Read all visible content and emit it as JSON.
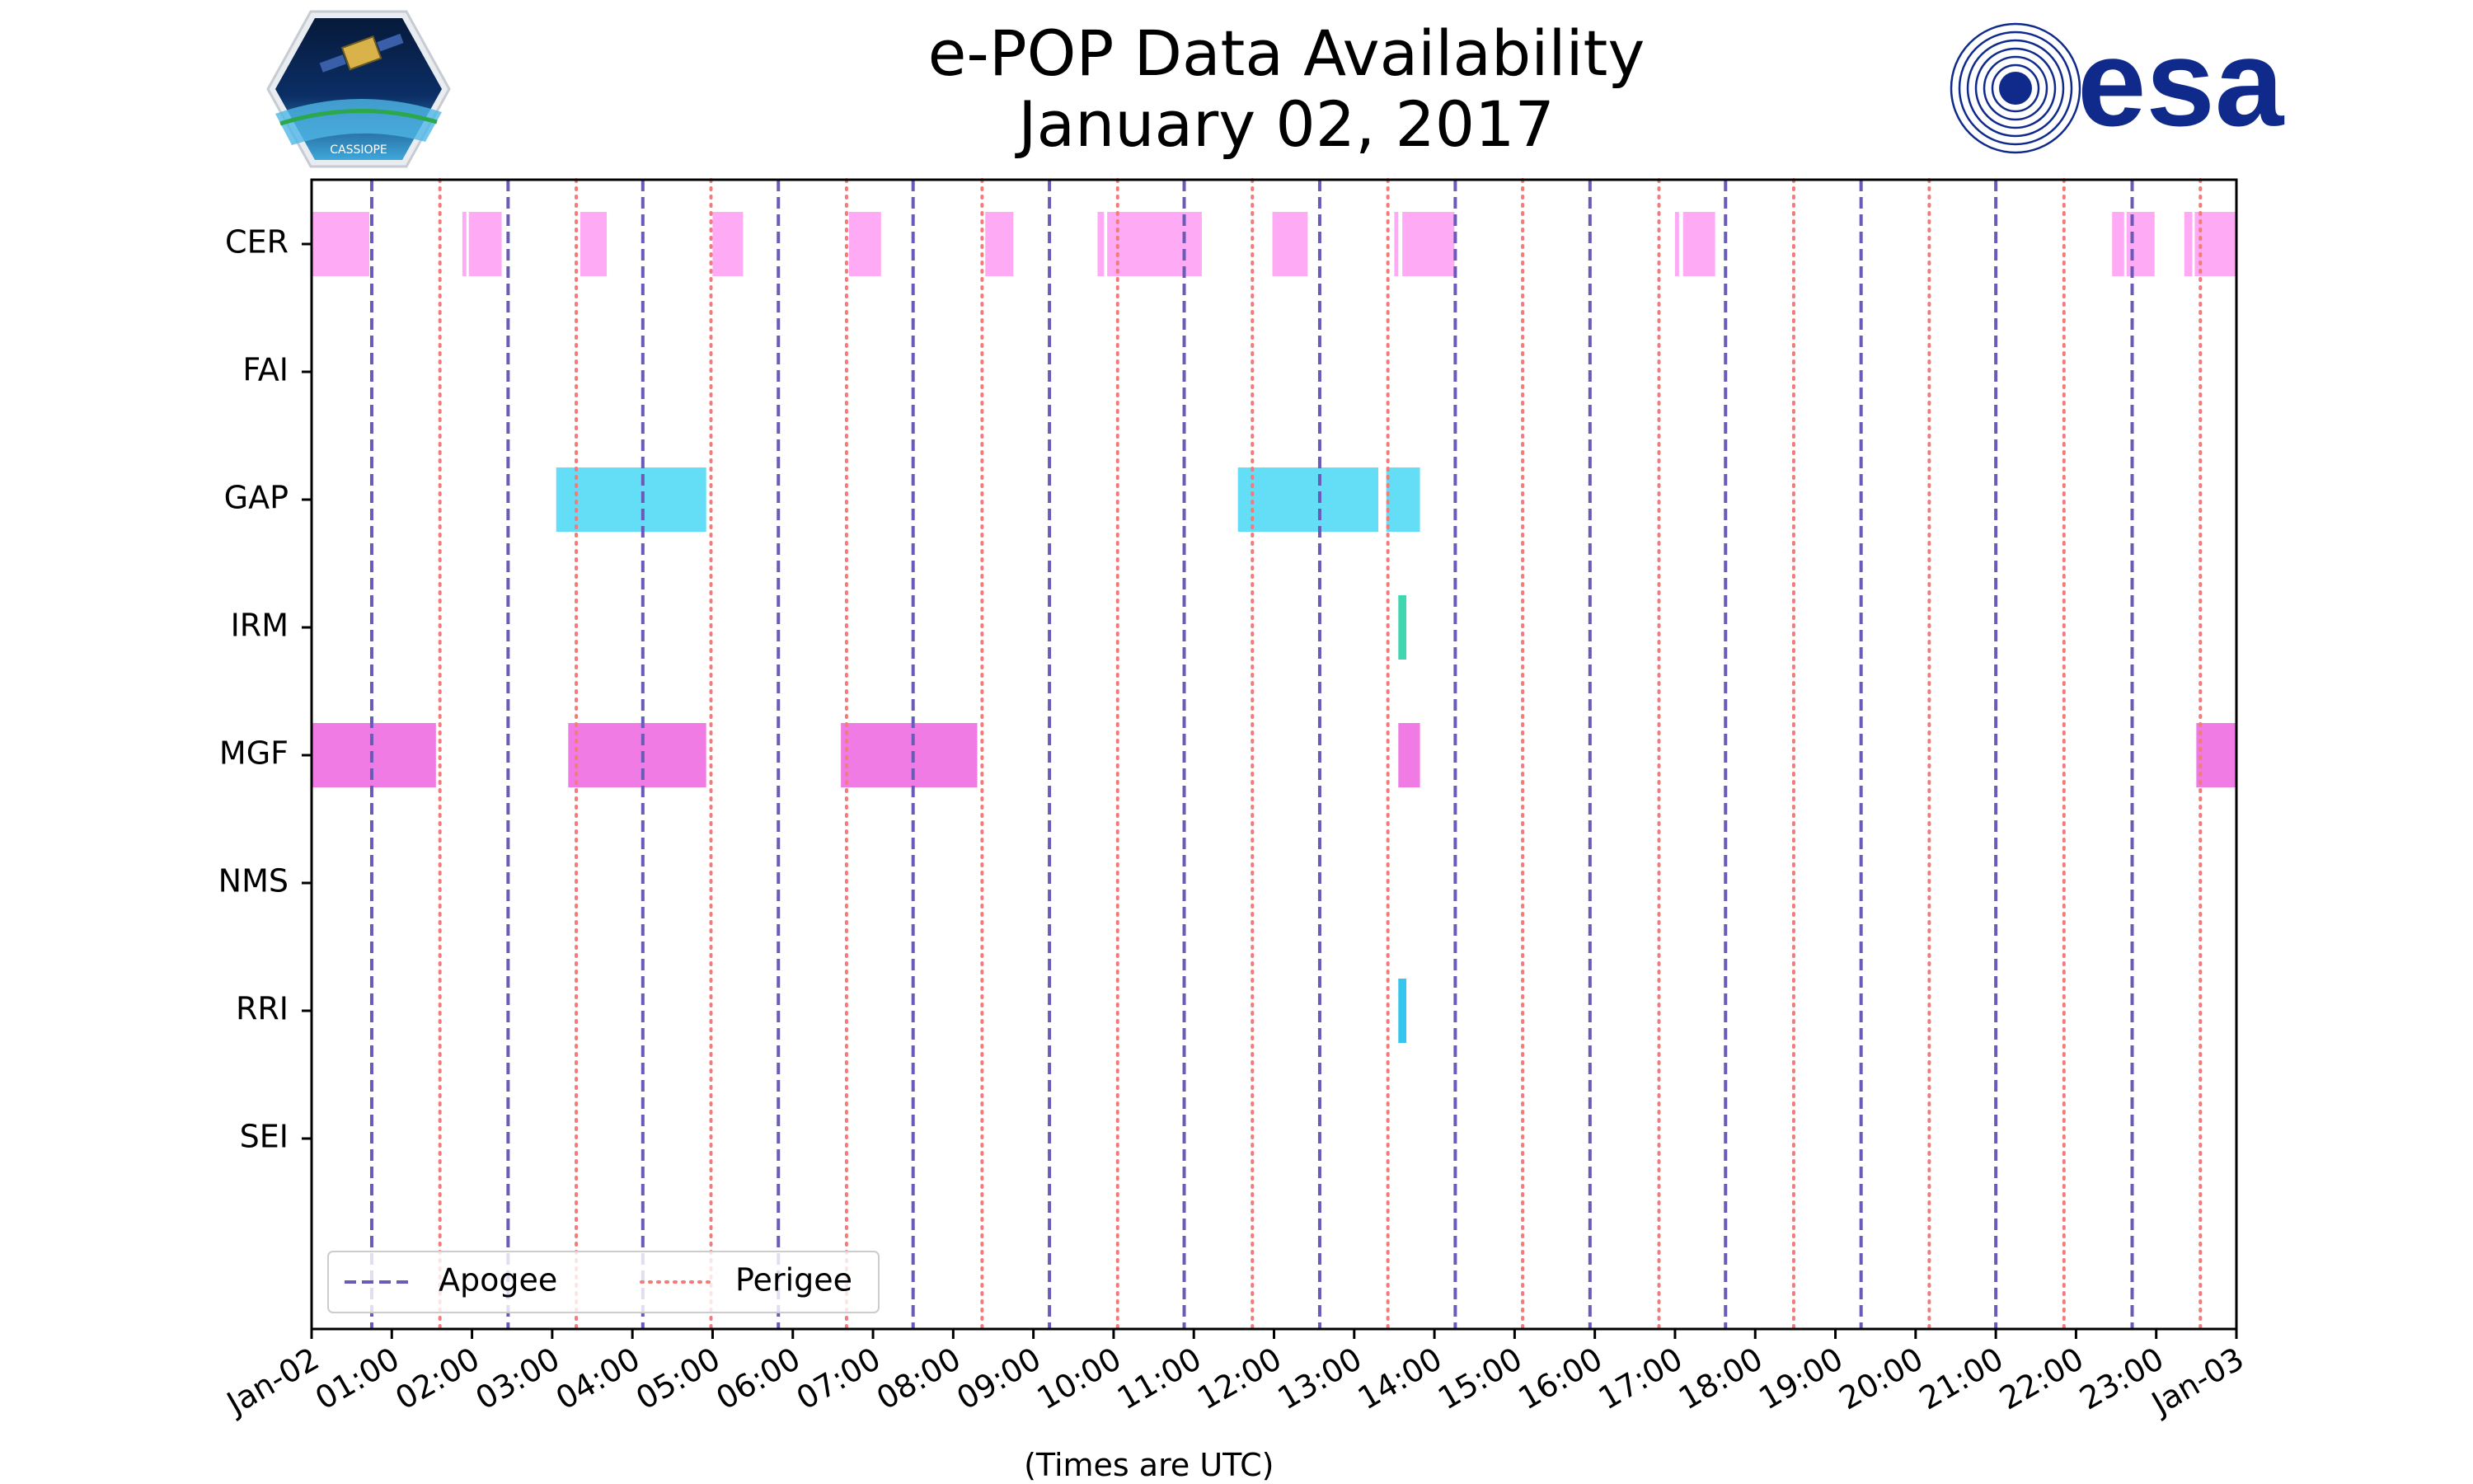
{
  "title": {
    "line1": "e-POP Data Availability",
    "line2": "January 02, 2017"
  },
  "logos": {
    "left": {
      "name": "CASSIOPE mission patch",
      "text": "CASSIOPE"
    },
    "right": {
      "name": "ESA logo",
      "text": "esa",
      "color": "#0f2a8a"
    }
  },
  "chart_data": {
    "type": "timeline",
    "title": "e-POP Data Availability January 02, 2017",
    "xlabel": "(Times are UTC)",
    "ylabel": "",
    "x_unit": "hours UTC",
    "xlim": [
      0,
      24
    ],
    "x_ticks": [
      {
        "value": 0,
        "label": "Jan-02"
      },
      {
        "value": 1,
        "label": "01:00"
      },
      {
        "value": 2,
        "label": "02:00"
      },
      {
        "value": 3,
        "label": "03:00"
      },
      {
        "value": 4,
        "label": "04:00"
      },
      {
        "value": 5,
        "label": "05:00"
      },
      {
        "value": 6,
        "label": "06:00"
      },
      {
        "value": 7,
        "label": "07:00"
      },
      {
        "value": 8,
        "label": "08:00"
      },
      {
        "value": 9,
        "label": "09:00"
      },
      {
        "value": 10,
        "label": "10:00"
      },
      {
        "value": 11,
        "label": "11:00"
      },
      {
        "value": 12,
        "label": "12:00"
      },
      {
        "value": 13,
        "label": "13:00"
      },
      {
        "value": 14,
        "label": "14:00"
      },
      {
        "value": 15,
        "label": "15:00"
      },
      {
        "value": 16,
        "label": "16:00"
      },
      {
        "value": 17,
        "label": "17:00"
      },
      {
        "value": 18,
        "label": "18:00"
      },
      {
        "value": 19,
        "label": "19:00"
      },
      {
        "value": 20,
        "label": "20:00"
      },
      {
        "value": 21,
        "label": "21:00"
      },
      {
        "value": 22,
        "label": "22:00"
      },
      {
        "value": 23,
        "label": "23:00"
      },
      {
        "value": 24,
        "label": "Jan-03"
      }
    ],
    "instruments": [
      {
        "name": "CER",
        "color": "#ffaaf5",
        "segments": [
          [
            0.0,
            0.72
          ],
          [
            1.88,
            1.93
          ],
          [
            1.96,
            2.37
          ],
          [
            3.35,
            3.68
          ],
          [
            5.0,
            5.38
          ],
          [
            6.7,
            7.1
          ],
          [
            8.4,
            8.75
          ],
          [
            9.8,
            9.88
          ],
          [
            9.92,
            11.1
          ],
          [
            11.98,
            12.42
          ],
          [
            13.5,
            13.55
          ],
          [
            13.6,
            14.25
          ],
          [
            17.0,
            17.05
          ],
          [
            17.1,
            17.5
          ],
          [
            22.45,
            22.6
          ],
          [
            22.63,
            22.98
          ],
          [
            23.35,
            23.45
          ],
          [
            23.48,
            24.0
          ]
        ]
      },
      {
        "name": "FAI",
        "color": "#ffaaf5",
        "segments": []
      },
      {
        "name": "GAP",
        "color": "#64ddf7",
        "segments": [
          [
            3.05,
            4.92
          ],
          [
            11.55,
            13.3
          ],
          [
            13.4,
            13.82
          ]
        ]
      },
      {
        "name": "IRM",
        "color": "#3fd6b0",
        "segments": [
          [
            13.55,
            13.65
          ]
        ]
      },
      {
        "name": "MGF",
        "color": "#f07be5",
        "segments": [
          [
            0.0,
            1.55
          ],
          [
            3.2,
            4.92
          ],
          [
            6.6,
            8.3
          ],
          [
            13.55,
            13.82
          ],
          [
            23.5,
            24.0
          ]
        ]
      },
      {
        "name": "NMS",
        "color": "#f07be5",
        "segments": []
      },
      {
        "name": "RRI",
        "color": "#34c6ee",
        "segments": [
          [
            13.55,
            13.65
          ]
        ]
      },
      {
        "name": "SEI",
        "color": "#34c6ee",
        "segments": []
      }
    ],
    "apogee": {
      "label": "Apogee",
      "color": "#6a5bb8",
      "style": "dashed",
      "times": [
        0.75,
        2.45,
        4.13,
        5.82,
        7.5,
        9.2,
        10.88,
        12.57,
        14.26,
        15.94,
        17.63,
        19.32,
        21.0,
        22.7
      ]
    },
    "perigee": {
      "label": "Perigee",
      "color": "#f17c7c",
      "style": "dotted",
      "times": [
        1.6,
        3.3,
        4.98,
        6.67,
        8.36,
        10.05,
        11.73,
        13.42,
        15.1,
        16.8,
        18.48,
        20.17,
        21.85,
        23.55
      ]
    },
    "legend": {
      "position": "lower-left",
      "entries": [
        "Apogee",
        "Perigee"
      ]
    }
  }
}
